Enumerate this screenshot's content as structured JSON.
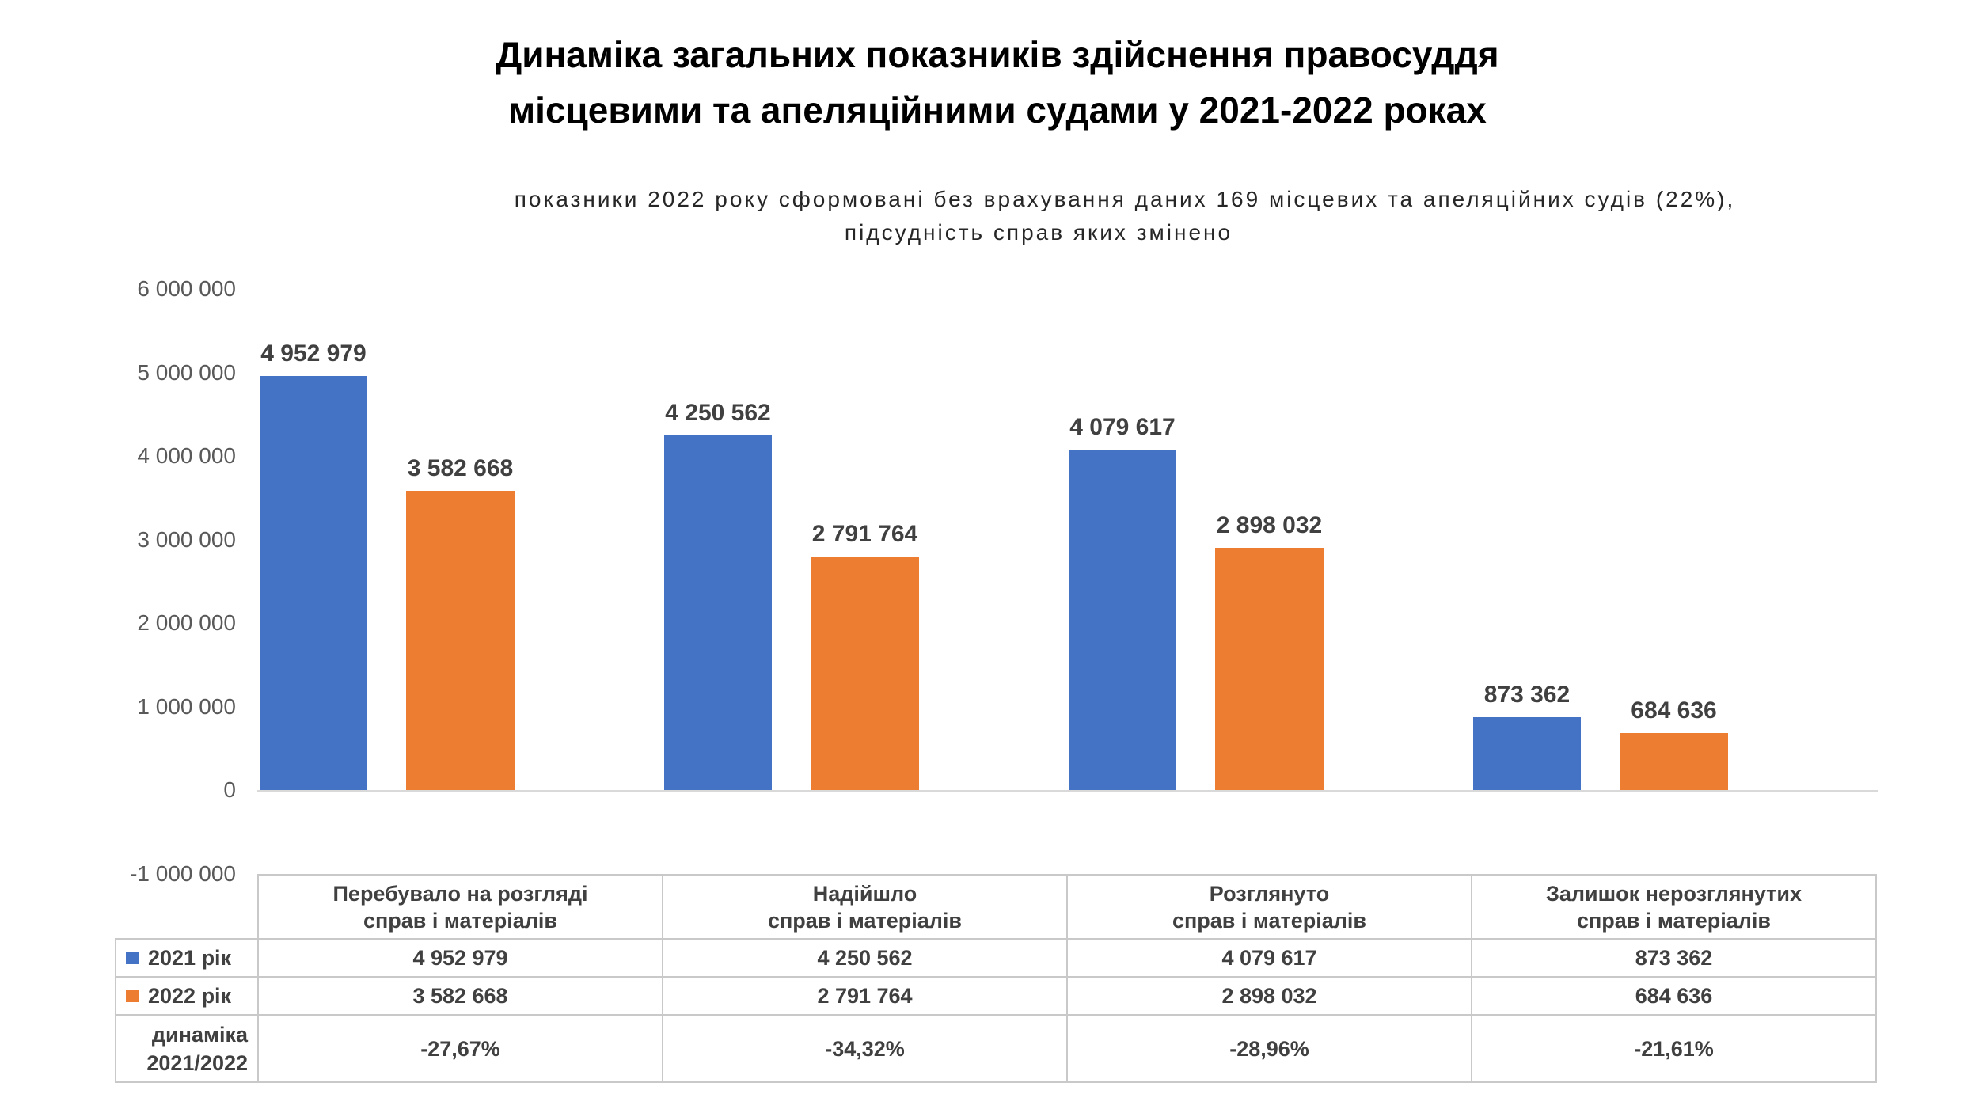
{
  "chart_data": {
    "type": "bar",
    "title": "Динаміка загальних показників здійснення правосуддя\nмісцевими та апеляційними судами у 2021-2022 роках",
    "subtitle_line1": "показники 2022 року сформовані без врахування даних 169 місцевих та апеляційних судів (22%),",
    "subtitle_line2": "підсудність справ яких змінено",
    "categories": [
      "Перебувало на розгляді\nсправ і матеріалів",
      "Надійшло\nсправ і матеріалів",
      "Розглянуто\nсправ і матеріалів",
      "Залишок нерозглянутих\nсправ і матеріалів"
    ],
    "series": [
      {
        "name": "2021 рік",
        "color": "#4472C4",
        "values": [
          4952979,
          4250562,
          4079617,
          873362
        ],
        "value_labels": [
          "4 952 979",
          "4 250 562",
          "4 079 617",
          "873 362"
        ]
      },
      {
        "name": "2022 рік",
        "color": "#ED7D31",
        "values": [
          3582668,
          2791764,
          2898032,
          684636
        ],
        "value_labels": [
          "3 582 668",
          "2 791 764",
          "2 898 032",
          "684 636"
        ]
      }
    ],
    "dynamics_row": {
      "label": "динаміка\n2021/2022",
      "values": [
        "-27,67%",
        "-34,32%",
        "-28,96%",
        "-21,61%"
      ]
    },
    "y_axis": {
      "min": -1000000,
      "max": 6000000,
      "step": 1000000,
      "tick_labels": [
        "6 000 000",
        "5 000 000",
        "4 000 000",
        "3 000 000",
        "2 000 000",
        "1 000 000",
        "0",
        "-1 000 000"
      ]
    },
    "grid": false,
    "legend_position": "data-table-left-column",
    "colors": {
      "axis_line": "#d9d9d9",
      "table_border": "#c9c9c9",
      "text_dark": "#404040",
      "tick_text": "#595959",
      "title_text": "#000000"
    }
  }
}
